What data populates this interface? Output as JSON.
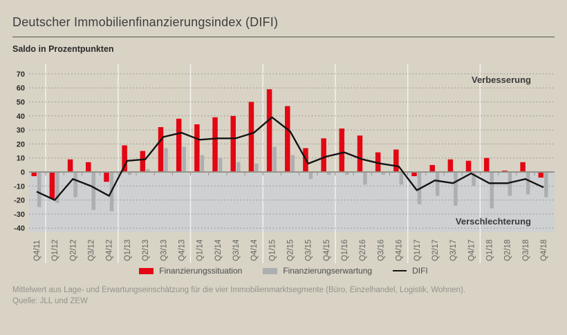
{
  "page": {
    "title": "Deutscher Immobilienfinanzierungsindex (DIFI)",
    "subtitle": "Saldo in Prozentpunkten",
    "note": "Mittelwert aus Lage- und Erwartungseinschätzung für die vier Immobilienmarktsegmente (Büro, Einzelhandel, Logistik, Wohnen).",
    "source": "Quelle: JLL und ZEW"
  },
  "colors": {
    "background": "#d8d3c5",
    "negative_zone": "#ced0d2",
    "situation_red": "#e30613",
    "expectation_gray": "#adaeb0",
    "difi_line": "#141414",
    "grid_dots": "#8d8a80",
    "zero_axis": "#96938b",
    "year_separator": "rgba(255,255,255,0.7)",
    "title_text": "#3e3e3e",
    "tick_text": "#2b2b2b",
    "xlabel_text": "#64635f",
    "note_text": "#94928a"
  },
  "chart_data": {
    "type": "bar+line",
    "title": "Deutscher Immobilienfinanzierungsindex (DIFI)",
    "ylabel": "Saldo in Prozentpunkten",
    "ylim": [
      -40,
      70
    ],
    "ytick_step": 10,
    "grid": "horizontal-dotted",
    "legend_position": "bottom-center",
    "categories": [
      "Q4/11",
      "Q1/12",
      "Q2/12",
      "Q3/12",
      "Q4/12",
      "Q1/13",
      "Q2/13",
      "Q3/13",
      "Q4/13",
      "Q1/14",
      "Q2/14",
      "Q3/14",
      "Q4/14",
      "Q1/15",
      "Q2/15",
      "Q3/15",
      "Q4/15",
      "Q1/16",
      "Q2/16",
      "Q3/16",
      "Q4/16",
      "Q1/17",
      "Q2/17",
      "Q3/17",
      "Q4/17",
      "Q1/18",
      "Q2/18",
      "Q3/18",
      "Q4/18"
    ],
    "series": [
      {
        "name": "Finanzierungssituation",
        "type": "bar",
        "color": "#e30613",
        "values": [
          -3,
          -19,
          9,
          7,
          -7,
          19,
          15,
          32,
          38,
          34,
          39,
          40,
          50,
          59,
          47,
          17,
          24,
          31,
          26,
          14,
          16,
          -3,
          5,
          9,
          8,
          10,
          1,
          7,
          -4
        ]
      },
      {
        "name": "Finanzierungserwartung",
        "type": "bar",
        "color": "#adaeb0",
        "values": [
          -25,
          -22,
          -18,
          -27,
          -28,
          -2,
          2,
          17,
          18,
          12,
          10,
          7,
          6,
          18,
          12,
          -5,
          -2,
          -2,
          -9,
          -2,
          -9,
          -23,
          -17,
          -24,
          -10,
          -26,
          -17,
          -16,
          -18
        ]
      },
      {
        "name": "DIFI",
        "type": "line",
        "color": "#141414",
        "values": [
          -14,
          -20,
          -5,
          -10,
          -17,
          8,
          9,
          25,
          28,
          23,
          24,
          24,
          28,
          39,
          29,
          6,
          11,
          14,
          9,
          6,
          4,
          -13,
          -6,
          -8,
          -1,
          -8,
          -8,
          -5,
          -11
        ]
      }
    ],
    "annotations": [
      {
        "text": "Verbesserung",
        "position": "top-right"
      },
      {
        "text": "Verschlechterung",
        "position": "bottom-right"
      }
    ]
  }
}
